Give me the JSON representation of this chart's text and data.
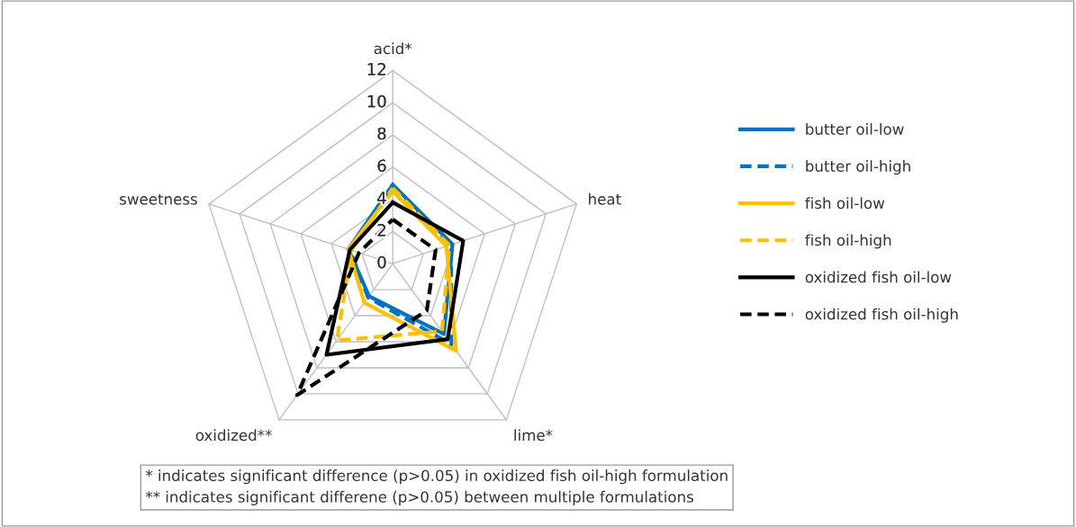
{
  "chart_data": {
    "type": "radar",
    "categories": [
      "acid*",
      "heat",
      "lime*",
      "oxidized**",
      "sweetness"
    ],
    "ylim": [
      0,
      12
    ],
    "yticks": [
      0,
      2,
      4,
      6,
      8,
      10,
      12
    ],
    "grid": true,
    "legend": "right",
    "marker": "none",
    "series": [
      {
        "name": "butter oil-low",
        "color": "#0070c0",
        "line_style": "solid",
        "values": [
          4.9,
          3.9,
          5.4,
          2.5,
          2.9
        ]
      },
      {
        "name": "butter oil-high",
        "color": "#0070c0",
        "line_style": "dashed",
        "values": [
          4.8,
          3.8,
          6.2,
          2.6,
          2.8
        ]
      },
      {
        "name": "fish oil-low",
        "color": "#ffc000",
        "line_style": "solid",
        "values": [
          4.5,
          3.5,
          6.7,
          3.0,
          2.9
        ]
      },
      {
        "name": "fish oil-high",
        "color": "#ffc000",
        "line_style": "dashed",
        "values": [
          4.7,
          3.7,
          5.2,
          5.9,
          2.7
        ]
      },
      {
        "name": "oxidized fish oil-low",
        "color": "#000000",
        "line_style": "solid",
        "values": [
          3.8,
          4.6,
          5.8,
          7.0,
          2.8
        ]
      },
      {
        "name": "oxidized fish oil-high",
        "color": "#000000",
        "line_style": "dashed",
        "values": [
          2.75,
          2.8,
          3.6,
          10.1,
          2.2
        ]
      }
    ],
    "annotations": [
      "* indicates significant difference (p>0.05) in oxidized fish oil-high formulation",
      "** indicates significant differene (p>0.05) between multiple formulations"
    ]
  }
}
